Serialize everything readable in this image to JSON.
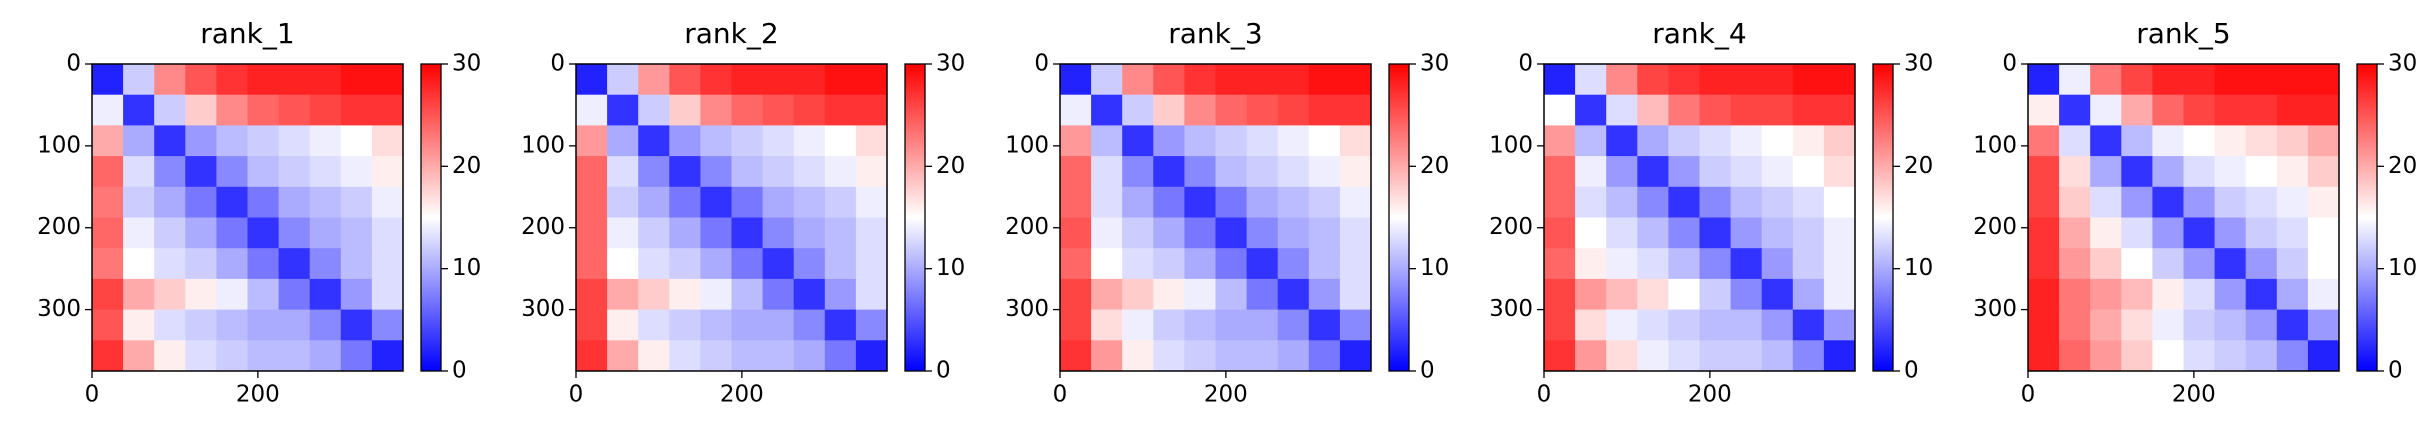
{
  "chart_data": [
    {
      "type": "heatmap",
      "title": "rank_1",
      "xlim": [
        0,
        375
      ],
      "ylim": [
        375,
        0
      ],
      "xticks": [
        0,
        200
      ],
      "yticks": [
        0,
        100,
        200,
        300
      ],
      "clim": [
        0,
        30
      ],
      "cticks": [
        0,
        10,
        20,
        30
      ],
      "colors": [
        "#0000ff",
        "#ffffff",
        "#ff0000"
      ],
      "values": [
        [
          2,
          12,
          22,
          25,
          27,
          28,
          28,
          28,
          29,
          29
        ],
        [
          14,
          3,
          12,
          18,
          22,
          24,
          25,
          26,
          27,
          27
        ],
        [
          20,
          10,
          3,
          9,
          11,
          12,
          13,
          14,
          15,
          17
        ],
        [
          24,
          13,
          8,
          3,
          8,
          11,
          12,
          13,
          14,
          16
        ],
        [
          23,
          12,
          10,
          7,
          3,
          7,
          10,
          11,
          12,
          14
        ],
        [
          24,
          14,
          12,
          10,
          7,
          3,
          8,
          10,
          11,
          13
        ],
        [
          23,
          15,
          13,
          12,
          10,
          7,
          3,
          8,
          11,
          13
        ],
        [
          26,
          20,
          18,
          16,
          14,
          11,
          7,
          3,
          9,
          13
        ],
        [
          25,
          16,
          13,
          12,
          11,
          10,
          10,
          8,
          3,
          8
        ],
        [
          27,
          20,
          16,
          13,
          12,
          11,
          11,
          10,
          7,
          2
        ]
      ]
    },
    {
      "type": "heatmap",
      "title": "rank_2",
      "xlim": [
        0,
        375
      ],
      "ylim": [
        375,
        0
      ],
      "xticks": [
        0,
        200
      ],
      "yticks": [
        0,
        100,
        200,
        300
      ],
      "clim": [
        0,
        30
      ],
      "cticks": [
        0,
        10,
        20,
        30
      ],
      "colors": [
        "#0000ff",
        "#ffffff",
        "#ff0000"
      ],
      "values": [
        [
          2,
          12,
          21,
          25,
          27,
          28,
          28,
          28,
          29,
          29
        ],
        [
          14,
          3,
          12,
          18,
          22,
          24,
          25,
          26,
          27,
          27
        ],
        [
          21,
          10,
          3,
          9,
          11,
          12,
          13,
          14,
          15,
          17
        ],
        [
          24,
          13,
          8,
          3,
          8,
          11,
          12,
          13,
          14,
          16
        ],
        [
          24,
          12,
          10,
          7,
          3,
          7,
          10,
          11,
          12,
          14
        ],
        [
          24,
          14,
          12,
          10,
          7,
          3,
          8,
          10,
          11,
          13
        ],
        [
          24,
          15,
          13,
          12,
          10,
          7,
          3,
          8,
          11,
          13
        ],
        [
          26,
          20,
          18,
          16,
          14,
          11,
          7,
          3,
          9,
          13
        ],
        [
          26,
          16,
          13,
          12,
          11,
          10,
          10,
          8,
          3,
          8
        ],
        [
          27,
          20,
          16,
          13,
          12,
          11,
          11,
          10,
          7,
          2
        ]
      ]
    },
    {
      "type": "heatmap",
      "title": "rank_3",
      "xlim": [
        0,
        375
      ],
      "ylim": [
        375,
        0
      ],
      "xticks": [
        0,
        200
      ],
      "yticks": [
        0,
        100,
        200,
        300
      ],
      "clim": [
        0,
        30
      ],
      "cticks": [
        0,
        10,
        20,
        30
      ],
      "colors": [
        "#0000ff",
        "#ffffff",
        "#ff0000"
      ],
      "values": [
        [
          2,
          12,
          22,
          25,
          27,
          28,
          28,
          28,
          29,
          29
        ],
        [
          14,
          3,
          12,
          18,
          22,
          24,
          25,
          26,
          27,
          27
        ],
        [
          21,
          11,
          3,
          9,
          11,
          12,
          13,
          14,
          15,
          17
        ],
        [
          24,
          13,
          8,
          3,
          8,
          11,
          12,
          13,
          14,
          16
        ],
        [
          24,
          13,
          10,
          7,
          3,
          7,
          10,
          11,
          12,
          14
        ],
        [
          25,
          14,
          12,
          10,
          7,
          3,
          8,
          10,
          11,
          13
        ],
        [
          24,
          15,
          13,
          12,
          10,
          7,
          3,
          8,
          11,
          13
        ],
        [
          26,
          20,
          18,
          16,
          14,
          11,
          7,
          3,
          9,
          13
        ],
        [
          26,
          17,
          14,
          12,
          11,
          10,
          10,
          8,
          3,
          8
        ],
        [
          27,
          21,
          16,
          13,
          12,
          11,
          11,
          10,
          7,
          2
        ]
      ]
    },
    {
      "type": "heatmap",
      "title": "rank_4",
      "xlim": [
        0,
        375
      ],
      "ylim": [
        375,
        0
      ],
      "xticks": [
        0,
        200
      ],
      "yticks": [
        0,
        100,
        200,
        300
      ],
      "clim": [
        0,
        30
      ],
      "cticks": [
        0,
        10,
        20,
        30
      ],
      "colors": [
        "#0000ff",
        "#ffffff",
        "#ff0000"
      ],
      "values": [
        [
          2,
          13,
          22,
          26,
          27,
          28,
          28,
          28,
          29,
          29
        ],
        [
          15,
          3,
          13,
          19,
          23,
          25,
          26,
          26,
          27,
          27
        ],
        [
          21,
          11,
          3,
          10,
          12,
          13,
          14,
          15,
          16,
          18
        ],
        [
          24,
          14,
          9,
          3,
          9,
          12,
          13,
          14,
          15,
          17
        ],
        [
          24,
          13,
          11,
          8,
          3,
          8,
          11,
          12,
          13,
          15
        ],
        [
          25,
          15,
          13,
          11,
          8,
          3,
          9,
          11,
          12,
          14
        ],
        [
          24,
          16,
          14,
          13,
          11,
          8,
          3,
          9,
          12,
          14
        ],
        [
          26,
          21,
          19,
          17,
          15,
          12,
          8,
          3,
          10,
          14
        ],
        [
          26,
          17,
          14,
          13,
          12,
          11,
          11,
          9,
          3,
          9
        ],
        [
          27,
          21,
          17,
          14,
          13,
          12,
          12,
          11,
          8,
          2
        ]
      ]
    },
    {
      "type": "heatmap",
      "title": "rank_5",
      "xlim": [
        0,
        375
      ],
      "ylim": [
        375,
        0
      ],
      "xticks": [
        0,
        200
      ],
      "yticks": [
        0,
        100,
        200,
        300
      ],
      "clim": [
        0,
        30
      ],
      "cticks": [
        0,
        10,
        20,
        30
      ],
      "colors": [
        "#0000ff",
        "#ffffff",
        "#ff0000"
      ],
      "values": [
        [
          2,
          14,
          23,
          26,
          28,
          28,
          29,
          29,
          29,
          29
        ],
        [
          16,
          3,
          14,
          20,
          24,
          26,
          27,
          27,
          28,
          28
        ],
        [
          23,
          13,
          3,
          11,
          14,
          15,
          16,
          17,
          18,
          20
        ],
        [
          26,
          17,
          10,
          3,
          10,
          13,
          14,
          15,
          16,
          18
        ],
        [
          26,
          18,
          13,
          9,
          3,
          9,
          12,
          13,
          14,
          16
        ],
        [
          27,
          20,
          16,
          13,
          9,
          3,
          9,
          12,
          13,
          15
        ],
        [
          27,
          21,
          18,
          15,
          12,
          9,
          3,
          9,
          12,
          15
        ],
        [
          28,
          23,
          21,
          19,
          16,
          13,
          9,
          3,
          10,
          14
        ],
        [
          28,
          23,
          20,
          17,
          14,
          12,
          11,
          9,
          3,
          9
        ],
        [
          28,
          24,
          21,
          18,
          15,
          13,
          12,
          11,
          8,
          2
        ]
      ]
    }
  ]
}
